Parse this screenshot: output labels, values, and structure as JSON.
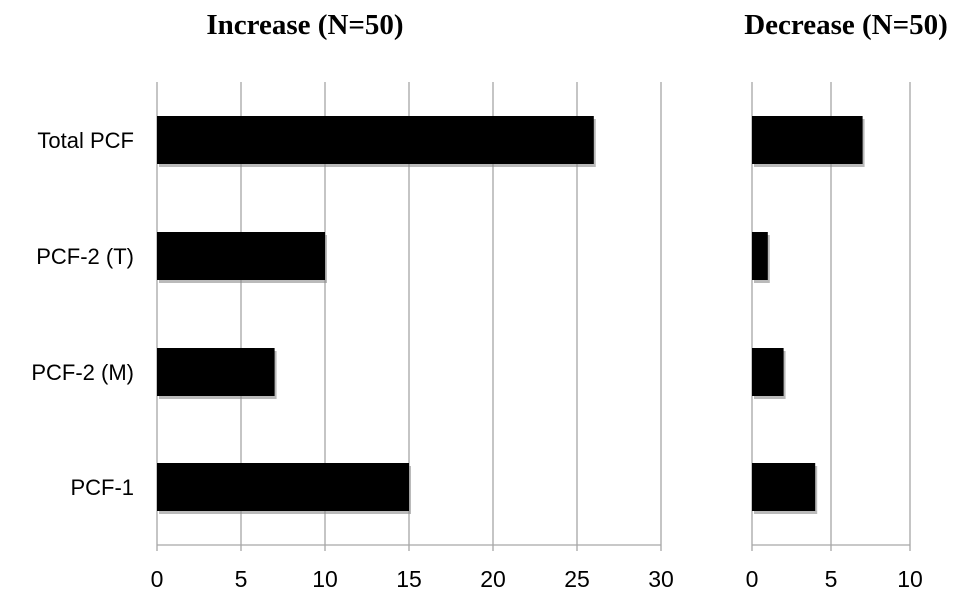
{
  "chart_data": [
    {
      "type": "bar",
      "orientation": "horizontal",
      "title": "Increase (N=50)",
      "categories": [
        "Total PCF",
        "PCF-2  (T)",
        "PCF-2  (M)",
        "PCF-1"
      ],
      "values": [
        26,
        10,
        7,
        15
      ],
      "xlim": [
        0,
        30
      ],
      "xticks": [
        "0",
        "5",
        "10",
        "15",
        "20",
        "25",
        "30"
      ],
      "grid": true,
      "bar_color": "#000000",
      "xlabel": "",
      "ylabel": ""
    },
    {
      "type": "bar",
      "orientation": "horizontal",
      "title": "Decrease (N=50)",
      "categories": [
        "Total PCF",
        "PCF-2  (T)",
        "PCF-2  (M)",
        "PCF-1"
      ],
      "values": [
        7,
        1,
        2,
        4
      ],
      "xlim": [
        0,
        10
      ],
      "xticks": [
        "0",
        "5",
        "10"
      ],
      "grid": true,
      "bar_color": "#000000",
      "xlabel": "",
      "ylabel": ""
    }
  ]
}
